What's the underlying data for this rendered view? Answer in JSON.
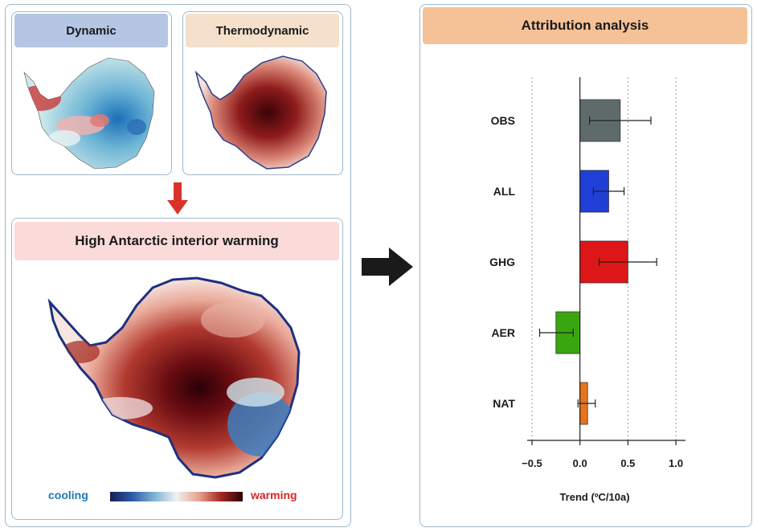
{
  "left_panel": {
    "dynamic_label": "Dynamic",
    "thermodynamic_label": "Thermodynamic",
    "main_title": "High Antarctic interior warming",
    "colorbar": {
      "cooling_label": "cooling",
      "warming_label": "warming"
    }
  },
  "right_panel": {
    "title": "Attribution analysis"
  },
  "colors": {
    "dynamic_header": "#b4c6e3",
    "thermo_header": "#f4e0cb",
    "main_header": "#fbdada",
    "attribution_header": "#f5c297",
    "cooling_text": "#1f77b4",
    "warming_text": "#d62728",
    "down_arrow": "#d9342b",
    "right_arrow": "#1a1a1a"
  },
  "chart_data": {
    "type": "bar",
    "orientation": "horizontal",
    "categories": [
      "OBS",
      "ALL",
      "GHG",
      "AER",
      "NAT"
    ],
    "values": [
      0.42,
      0.3,
      0.5,
      -0.25,
      0.08
    ],
    "error_low": [
      0.1,
      0.14,
      0.2,
      -0.42,
      -0.02
    ],
    "error_high": [
      0.74,
      0.46,
      0.8,
      -0.07,
      0.16
    ],
    "bar_colors": [
      "#5f6b6b",
      "#1f3fd6",
      "#dd1717",
      "#3aa60f",
      "#e8741a"
    ],
    "xlabel": "Trend (ºC/10a)",
    "ylabel": "",
    "xlim": [
      -0.55,
      1.1
    ],
    "xticks": [
      -0.5,
      0.0,
      0.5,
      1.0
    ],
    "xtick_labels": [
      "−0.5",
      "0.0",
      "0.5",
      "1.0"
    ],
    "grid": "dotted vertical at ticks"
  }
}
